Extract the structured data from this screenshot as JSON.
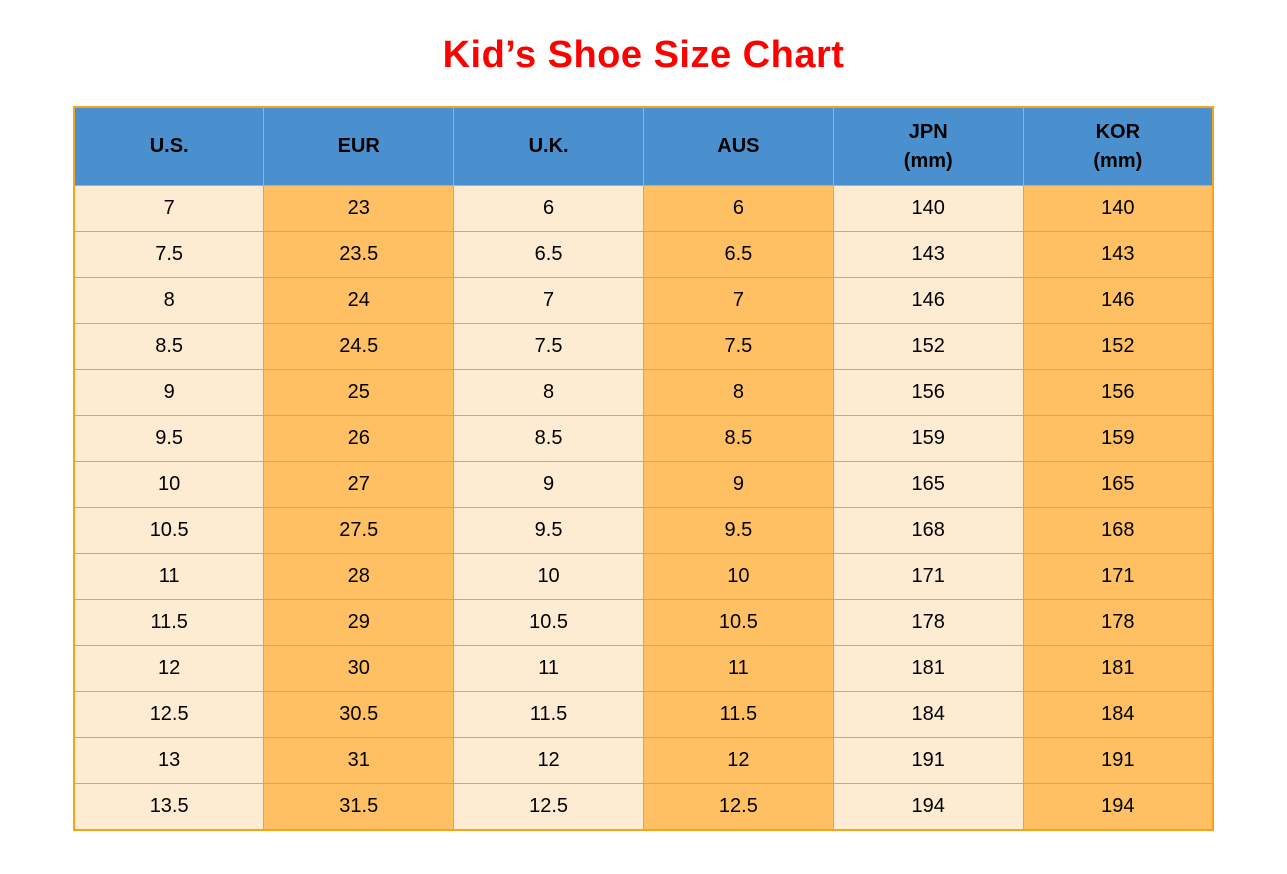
{
  "page": {
    "title": "Kid’s Shoe Size Chart",
    "title_color": "#FF0000",
    "background": "#FFFFFF"
  },
  "table": {
    "column_headers": [
      [
        "U.S."
      ],
      [
        "EUR"
      ],
      [
        "U.K."
      ],
      [
        "AUS"
      ],
      [
        "JPN",
        "(mm)"
      ],
      [
        "KOR",
        "(mm)"
      ]
    ],
    "rows": [
      [
        "7",
        "23",
        "6",
        "6",
        "140",
        "140"
      ],
      [
        "7.5",
        "23.5",
        "6.5",
        "6.5",
        "143",
        "143"
      ],
      [
        "8",
        "24",
        "7",
        "7",
        "146",
        "146"
      ],
      [
        "8.5",
        "24.5",
        "7.5",
        "7.5",
        "152",
        "152"
      ],
      [
        "9",
        "25",
        "8",
        "8",
        "156",
        "156"
      ],
      [
        "9.5",
        "26",
        "8.5",
        "8.5",
        "159",
        "159"
      ],
      [
        "10",
        "27",
        "9",
        "9",
        "165",
        "165"
      ],
      [
        "10.5",
        "27.5",
        "9.5",
        "9.5",
        "168",
        "168"
      ],
      [
        "11",
        "28",
        "10",
        "10",
        "171",
        "171"
      ],
      [
        "11.5",
        "29",
        "10.5",
        "10.5",
        "178",
        "178"
      ],
      [
        "12",
        "30",
        "11",
        "11",
        "181",
        "181"
      ],
      [
        "12.5",
        "30.5",
        "11.5",
        "11.5",
        "184",
        "184"
      ],
      [
        "13",
        "31",
        "12",
        "12",
        "191",
        "191"
      ],
      [
        "13.5",
        "31.5",
        "12.5",
        "12.5",
        "194",
        "194"
      ]
    ],
    "colors": {
      "header_bg": "#4A90CE",
      "column_light": "#FDEBD2",
      "column_dark": "#FEC063",
      "border": "#F6A41C",
      "header_text": "#000000",
      "cell_text": "#000000"
    }
  },
  "chart_data": {
    "type": "table",
    "title": "Kid’s Shoe Size Chart",
    "columns": [
      "U.S.",
      "EUR",
      "U.K.",
      "AUS",
      "JPN (mm)",
      "KOR (mm)"
    ],
    "rows": [
      [
        7,
        23,
        6,
        6,
        140,
        140
      ],
      [
        7.5,
        23.5,
        6.5,
        6.5,
        143,
        143
      ],
      [
        8,
        24,
        7,
        7,
        146,
        146
      ],
      [
        8.5,
        24.5,
        7.5,
        7.5,
        152,
        152
      ],
      [
        9,
        25,
        8,
        8,
        156,
        156
      ],
      [
        9.5,
        26,
        8.5,
        8.5,
        159,
        159
      ],
      [
        10,
        27,
        9,
        9,
        165,
        165
      ],
      [
        10.5,
        27.5,
        9.5,
        9.5,
        168,
        168
      ],
      [
        11,
        28,
        10,
        10,
        171,
        171
      ],
      [
        11.5,
        29,
        10.5,
        10.5,
        178,
        178
      ],
      [
        12,
        30,
        11,
        11,
        181,
        181
      ],
      [
        12.5,
        30.5,
        11.5,
        11.5,
        184,
        184
      ],
      [
        13,
        31,
        12,
        12,
        191,
        191
      ],
      [
        13.5,
        31.5,
        12.5,
        12.5,
        194,
        194
      ]
    ],
    "layout": {
      "header_position": "top",
      "grid": true,
      "column_fill_pattern": [
        "light",
        "dark",
        "light",
        "dark",
        "light",
        "dark"
      ]
    }
  }
}
